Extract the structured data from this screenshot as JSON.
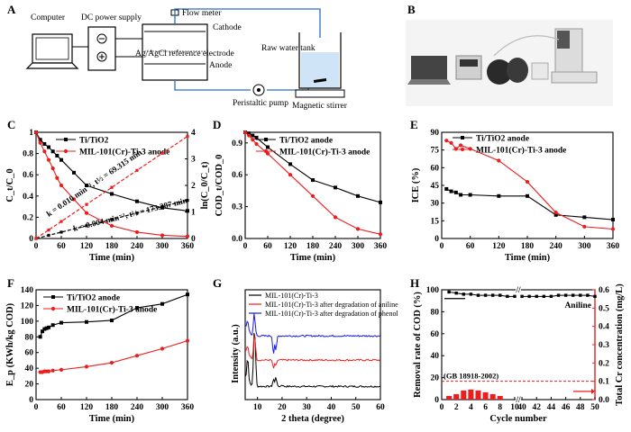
{
  "schematic": {
    "computer": "Computer",
    "dc_power_supply": "DC power supply",
    "flow_meter": "Flow meter",
    "cathode": "Cathode",
    "reference_electrode": "Ag/AgCl reference electrode",
    "anode": "Anode",
    "raw_water_tank": "Raw water tank",
    "peristaltic_pump": "Peristaltic pump",
    "magnetic_stirrer": "Magnetic stirrer"
  },
  "photo": {
    "description_label": "B"
  },
  "chart_data": [
    {
      "panel": "A",
      "type": "diagram"
    },
    {
      "panel": "B",
      "type": "photo"
    },
    {
      "panel": "C",
      "type": "line",
      "xlabel": "Time (min)",
      "ylabel": "C_t/C_0",
      "y2label": "ln(C_0/C_t)",
      "xlim": [
        0,
        360
      ],
      "ylim": [
        0,
        1.0
      ],
      "y2lim": [
        0,
        4
      ],
      "xticks": [
        0,
        60,
        120,
        180,
        240,
        300,
        360
      ],
      "yticks": [
        0.0,
        0.2,
        0.4,
        0.6,
        0.8,
        1.0
      ],
      "y2ticks": [
        0,
        1,
        2,
        3,
        4
      ],
      "series": [
        {
          "name": "Ti/TiO2",
          "color": "#000000",
          "x": [
            0,
            10,
            20,
            30,
            40,
            50,
            60,
            90,
            120,
            180,
            240,
            300,
            360
          ],
          "y": [
            1.0,
            0.93,
            0.89,
            0.86,
            0.82,
            0.78,
            0.74,
            0.62,
            0.5,
            0.42,
            0.35,
            0.29,
            0.26
          ]
        },
        {
          "name": "MIL-101(Cr)-Ti-3 anode",
          "color": "#ee1c1c",
          "x": [
            0,
            10,
            20,
            30,
            40,
            50,
            60,
            90,
            120,
            180,
            240,
            300,
            360
          ],
          "y": [
            1.0,
            0.9,
            0.82,
            0.74,
            0.66,
            0.57,
            0.5,
            0.37,
            0.24,
            0.12,
            0.06,
            0.03,
            0.02
          ]
        }
      ],
      "fits": [
        {
          "label": "k = 0.004 min⁻¹, t½ = 173.287 min",
          "color": "#000000",
          "x": [
            0,
            360
          ],
          "y2": [
            0,
            1.44
          ]
        },
        {
          "label": "k = 0.010 min⁻¹, t½ = 69.315 min",
          "color": "#ee1c1c",
          "x": [
            0,
            360
          ],
          "y2": [
            0,
            3.85
          ]
        }
      ]
    },
    {
      "panel": "D",
      "type": "line",
      "xlabel": "Time (min)",
      "ylabel": "COD_t/COD_0",
      "xlim": [
        0,
        360
      ],
      "ylim": [
        0,
        1.0
      ],
      "xticks": [
        0,
        60,
        120,
        180,
        240,
        300,
        360
      ],
      "yticks": [
        0.0,
        0.3,
        0.6,
        0.9
      ],
      "series": [
        {
          "name": "Ti/TiO2 anode",
          "color": "#000000",
          "x": [
            0,
            10,
            20,
            30,
            60,
            120,
            180,
            240,
            300,
            360
          ],
          "y": [
            1.0,
            0.99,
            0.97,
            0.95,
            0.86,
            0.7,
            0.55,
            0.48,
            0.4,
            0.34
          ]
        },
        {
          "name": "MIL-101(Cr)-Ti-3 anode",
          "color": "#ee1c1c",
          "x": [
            0,
            10,
            20,
            30,
            60,
            120,
            180,
            240,
            300,
            360
          ],
          "y": [
            1.0,
            0.97,
            0.93,
            0.89,
            0.8,
            0.6,
            0.4,
            0.2,
            0.09,
            0.04
          ]
        }
      ]
    },
    {
      "panel": "E",
      "type": "line",
      "xlabel": "Time (min)",
      "ylabel": "ICE (%)",
      "xlim": [
        0,
        360
      ],
      "ylim": [
        0,
        90
      ],
      "xticks": [
        0,
        60,
        120,
        180,
        240,
        300,
        360
      ],
      "yticks": [
        0,
        15,
        30,
        45,
        60,
        75,
        90
      ],
      "series": [
        {
          "name": "Ti/TiO2 anode",
          "color": "#000000",
          "x": [
            10,
            20,
            30,
            40,
            60,
            120,
            180,
            240,
            300,
            360
          ],
          "y": [
            42,
            40,
            39,
            37,
            37,
            36,
            36,
            20,
            18,
            16
          ]
        },
        {
          "name": "MIL-101(Cr)-Ti-3 anode",
          "color": "#ee1c1c",
          "x": [
            10,
            20,
            30,
            40,
            60,
            120,
            180,
            240,
            300,
            360
          ],
          "y": [
            83,
            81,
            76,
            79,
            76,
            66,
            48,
            22,
            10,
            8
          ]
        }
      ]
    },
    {
      "panel": "F",
      "type": "line",
      "xlabel": "Time (min)",
      "ylabel": "E_p (KWh/kg COD)",
      "xlim": [
        0,
        360
      ],
      "ylim": [
        0,
        140
      ],
      "xticks": [
        0,
        60,
        120,
        180,
        240,
        300,
        360
      ],
      "yticks": [
        0,
        20,
        40,
        60,
        80,
        100,
        120,
        140
      ],
      "series": [
        {
          "name": "Ti/TiO2 anode",
          "color": "#000000",
          "x": [
            10,
            15,
            20,
            25,
            30,
            40,
            60,
            120,
            180,
            240,
            300,
            360
          ],
          "y": [
            80,
            87,
            90,
            91,
            92,
            95,
            98,
            99,
            101,
            117,
            122,
            134
          ]
        },
        {
          "name": "MIL-101(Cr)-Ti-3 anode",
          "color": "#ee1c1c",
          "x": [
            10,
            15,
            20,
            25,
            30,
            40,
            60,
            120,
            180,
            240,
            300,
            360
          ],
          "y": [
            35,
            35,
            36,
            36,
            36,
            37,
            38,
            42,
            47,
            56,
            65,
            75
          ]
        }
      ]
    },
    {
      "panel": "G",
      "type": "line",
      "xlabel": "2 theta (degree)",
      "ylabel": "Intensity (a.u.)",
      "xlim": [
        5,
        60
      ],
      "xticks": [
        10,
        20,
        30,
        40,
        50,
        60
      ],
      "series": [
        {
          "name": "MIL-101(Cr)-Ti-3",
          "color": "#000000",
          "baseline": 0.12,
          "peaks": [
            [
              6,
              0.55
            ],
            [
              8.6,
              0.95
            ],
            [
              9.1,
              0.7
            ],
            [
              16.5,
              0.25
            ],
            [
              17.5,
              0.3
            ],
            [
              20,
              0.15
            ]
          ]
        },
        {
          "name": "MIL-101(Cr)-Ti-3 after degradation of aniline",
          "color": "#ee1c1c",
          "baseline": 0.36,
          "peaks": [
            [
              6,
              0.5
            ],
            [
              8.6,
              0.75
            ],
            [
              9.1,
              0.6
            ],
            [
              16.5,
              0.2
            ],
            [
              17.5,
              0.25
            ]
          ]
        },
        {
          "name": "MIL-101(Cr)-Ti-3 after degradation of phenol",
          "color": "#1a1ae6",
          "baseline": 0.58,
          "peaks": [
            [
              6,
              0.75
            ],
            [
              8.6,
              0.95
            ],
            [
              9.1,
              0.7
            ],
            [
              16.5,
              0.25
            ],
            [
              17.5,
              0.3
            ]
          ]
        }
      ]
    },
    {
      "panel": "H",
      "type": "bar+line",
      "xlabel": "Cycle number",
      "ylabel": "Removal rate of COD (%)",
      "y2label": "Total Cr concentration (mg/L)",
      "ylim": [
        0,
        100
      ],
      "y2lim": [
        0,
        0.6
      ],
      "xticks": [
        0,
        2,
        4,
        6,
        8,
        10,
        40,
        42,
        44,
        46,
        48,
        50
      ],
      "yticks": [
        0,
        20,
        40,
        60,
        80,
        100
      ],
      "y2ticks": [
        0.0,
        0.1,
        0.2,
        0.3,
        0.4,
        0.5,
        0.6
      ],
      "cod_line": {
        "color": "#000000",
        "x": [
          1,
          2,
          3,
          4,
          5,
          6,
          7,
          8,
          9,
          10,
          40,
          41,
          42,
          43,
          44,
          45,
          46,
          47,
          48,
          49,
          50
        ],
        "y": [
          98,
          97,
          96,
          96,
          95,
          95,
          95,
          95,
          94,
          94,
          94,
          94,
          94,
          94,
          94,
          95,
          95,
          95,
          95,
          95,
          94
        ]
      },
      "cr_bars": {
        "color": "#ee1c1c",
        "x": [
          1,
          2,
          3,
          4,
          5,
          6,
          7,
          8
        ],
        "values": [
          0.02,
          0.03,
          0.05,
          0.055,
          0.05,
          0.04,
          0.03,
          0.02
        ]
      },
      "standard_limit": {
        "label": "(GB 18918-2002)",
        "value": 0.1
      },
      "annotation": "Aniline"
    }
  ],
  "panel_labels": {
    "a": "A",
    "b": "B",
    "c": "C",
    "d": "D",
    "e": "E",
    "f": "F",
    "g": "G",
    "h": "H"
  }
}
